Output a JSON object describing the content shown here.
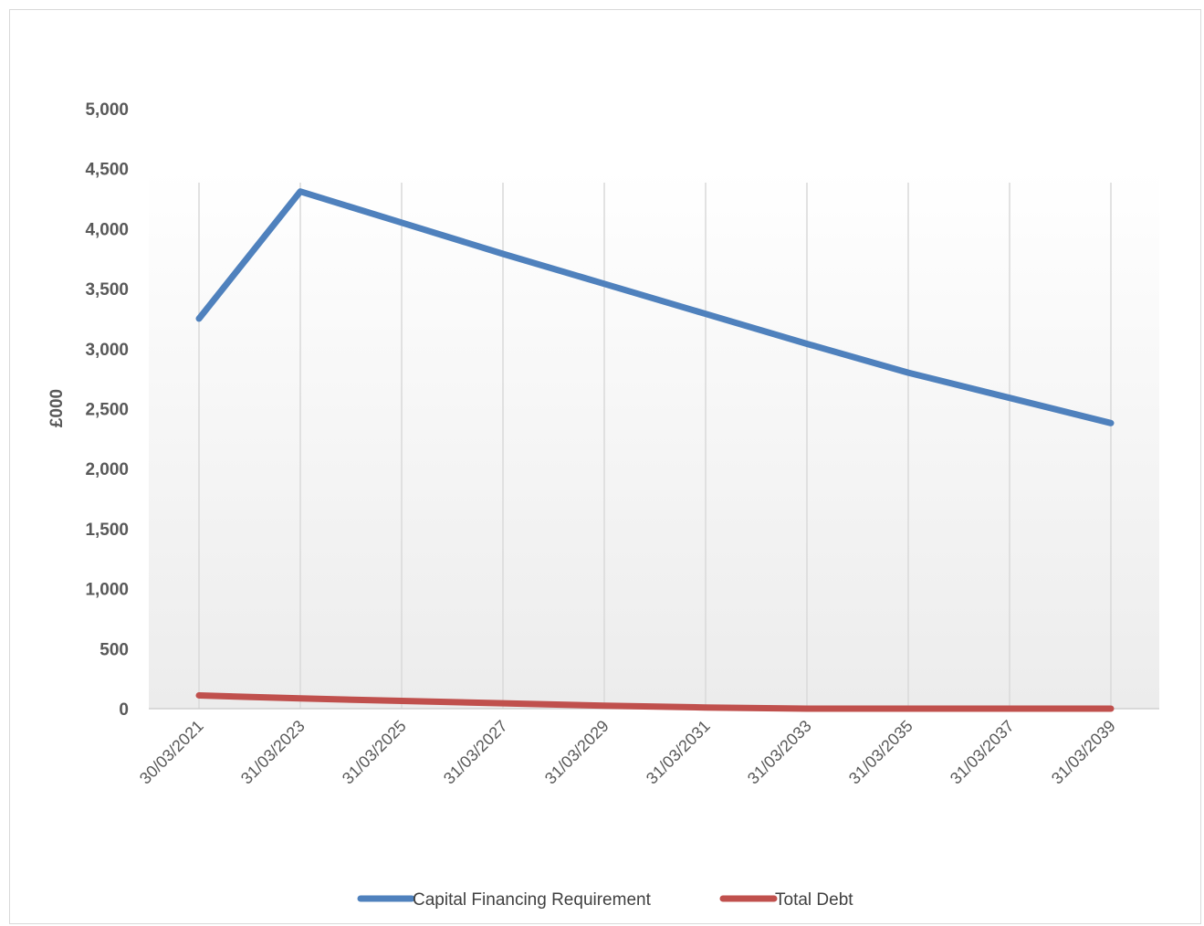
{
  "chart_data": {
    "type": "line",
    "title": "",
    "xlabel": "",
    "ylabel": "£000",
    "ylim": [
      0,
      5000
    ],
    "yticks": [
      "0",
      "500",
      "1,000",
      "1,500",
      "2,000",
      "2,500",
      "3,000",
      "3,500",
      "4,000",
      "4,500",
      "5,000"
    ],
    "categories": [
      "30/03/2021",
      "31/03/2023",
      "31/03/2025",
      "31/03/2027",
      "31/03/2029",
      "31/03/2031",
      "31/03/2033",
      "31/03/2035",
      "31/03/2037",
      "31/03/2039"
    ],
    "series": [
      {
        "name": "Capital Financing Requirement",
        "color": "#4f81bd",
        "values": [
          3250,
          4310,
          4050,
          3790,
          3540,
          3290,
          3040,
          2800,
          2590,
          2380
        ]
      },
      {
        "name": "Total Debt",
        "color": "#c0504d",
        "values": [
          110,
          85,
          65,
          45,
          25,
          10,
          0,
          0,
          0,
          0
        ]
      }
    ],
    "grid": "vertical",
    "legend_position": "bottom"
  }
}
